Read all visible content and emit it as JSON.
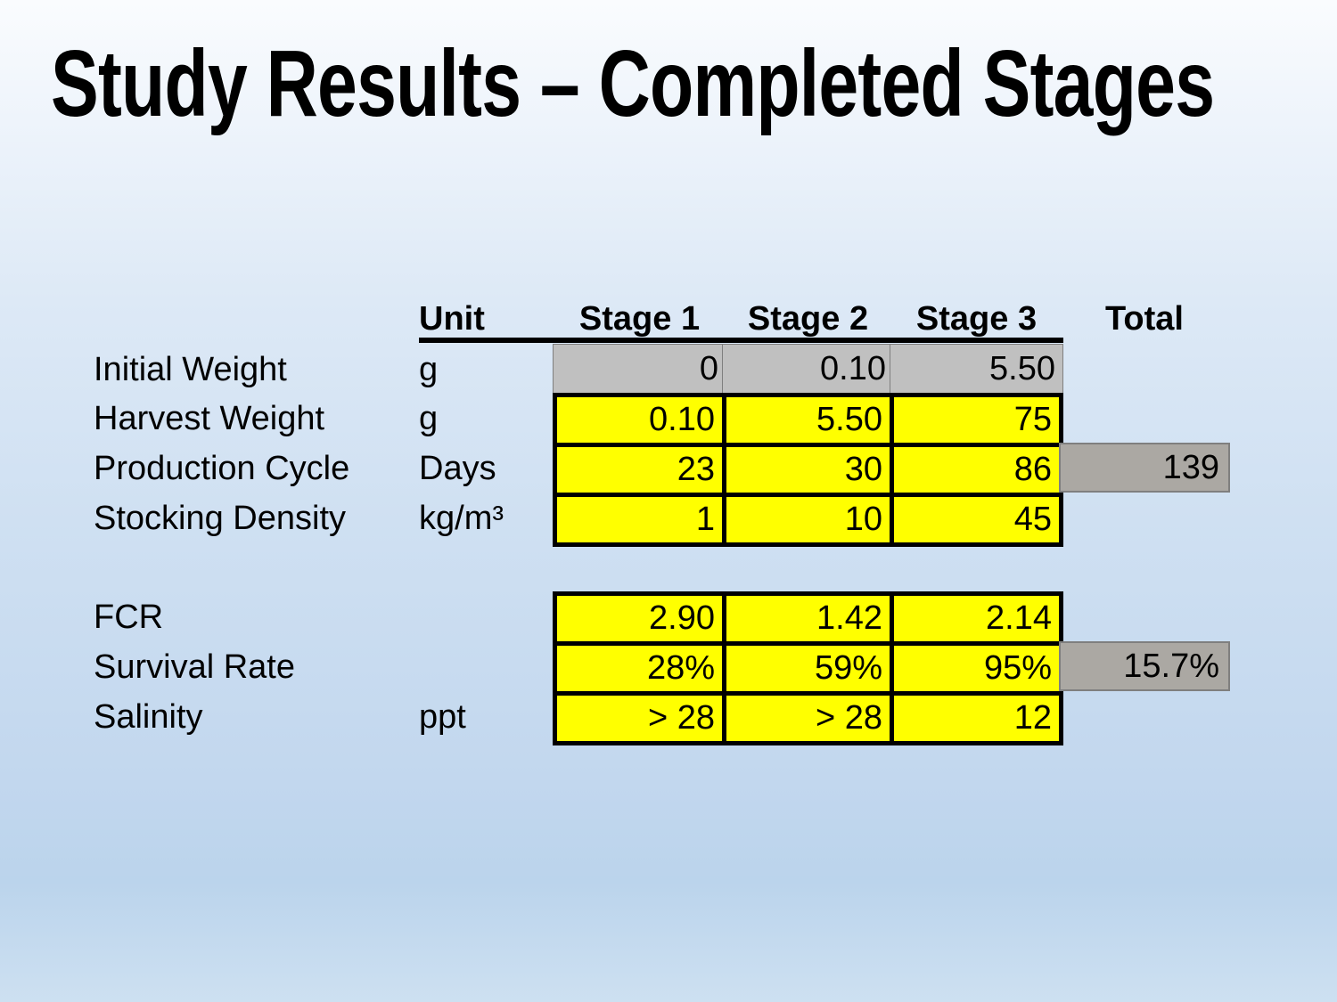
{
  "slide": {
    "title": "Study Results – Completed Stages"
  },
  "table": {
    "headers": {
      "unit": "Unit",
      "stages": [
        "Stage 1",
        "Stage 2",
        "Stage 3"
      ],
      "total": "Total"
    },
    "upper_rows": [
      {
        "label": "Initial Weight",
        "unit": "g",
        "values": [
          "0",
          "0.10",
          "5.50"
        ],
        "total": "",
        "fill": "gray"
      },
      {
        "label": "Harvest Weight",
        "unit": "g",
        "values": [
          "0.10",
          "5.50",
          "75"
        ],
        "total": "",
        "fill": "yellow"
      },
      {
        "label": "Production Cycle",
        "unit": "Days",
        "values": [
          "23",
          "30",
          "86"
        ],
        "total": "139",
        "fill": "yellow"
      },
      {
        "label": "Stocking Density",
        "unit": "kg/m³",
        "values": [
          "1",
          "10",
          "45"
        ],
        "total": "",
        "fill": "yellow"
      }
    ],
    "lower_rows": [
      {
        "label": "FCR",
        "unit": "",
        "values": [
          "2.90",
          "1.42",
          "2.14"
        ],
        "total": "",
        "fill": "yellow"
      },
      {
        "label": "Survival Rate",
        "unit": "",
        "values": [
          "28%",
          "59%",
          "95%"
        ],
        "total": "15.7%",
        "fill": "yellow"
      },
      {
        "label": "Salinity",
        "unit": "ppt",
        "values": [
          "> 28",
          "> 28",
          "12"
        ],
        "total": "",
        "fill": "yellow"
      }
    ],
    "colors": {
      "cell_yellow": "#FFFF00",
      "cell_gray": "#C0C0C0",
      "total_bar_gray": "#ABA8A3",
      "border_black": "#000000",
      "background_top": "#FAFCFE",
      "background_bottom": "#CDE0F1"
    }
  }
}
